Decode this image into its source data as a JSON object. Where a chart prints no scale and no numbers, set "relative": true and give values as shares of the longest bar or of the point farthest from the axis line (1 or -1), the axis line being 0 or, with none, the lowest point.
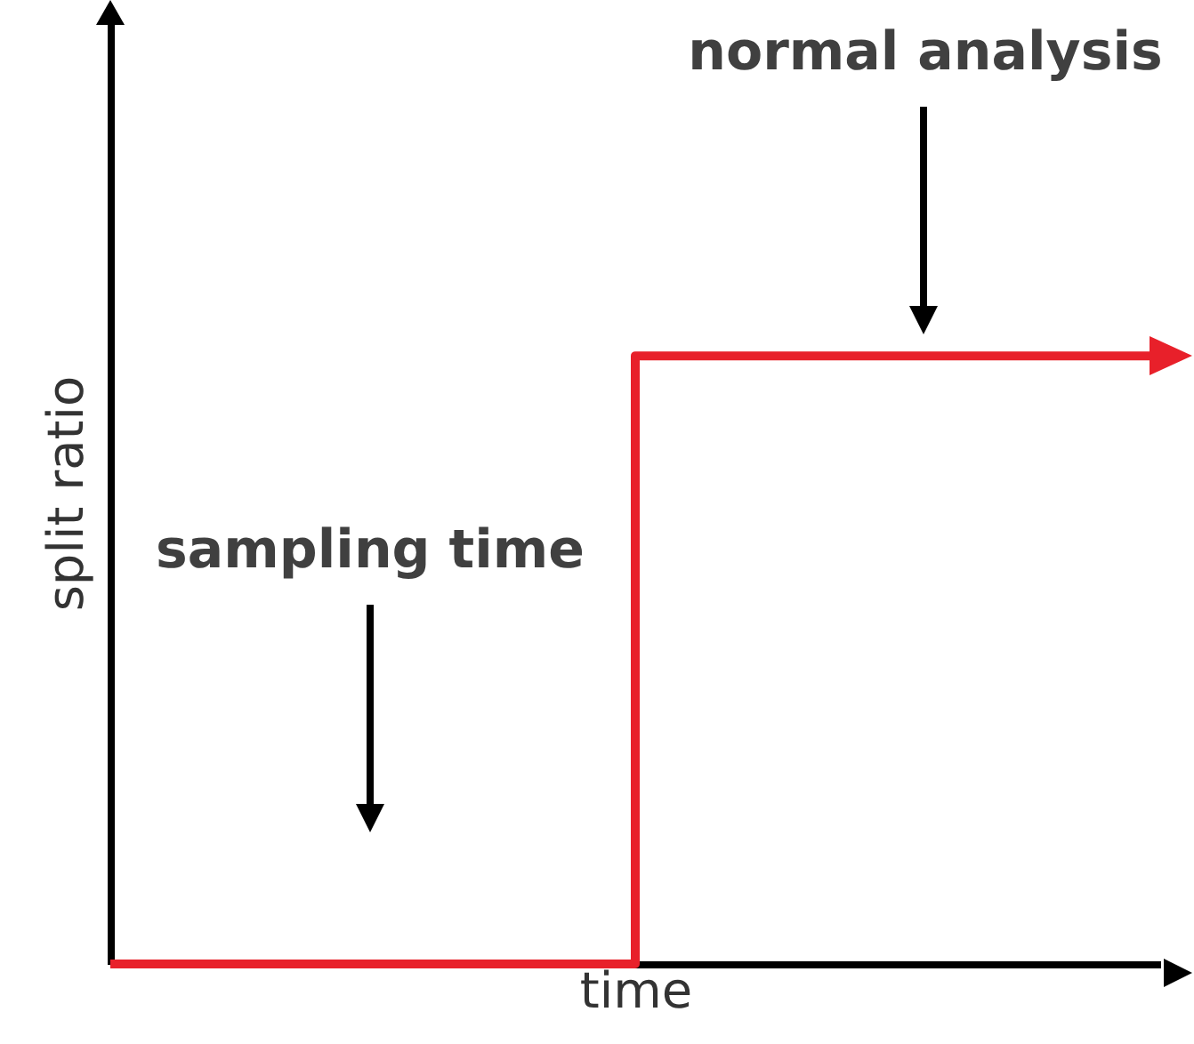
{
  "chart_data": {
    "type": "step",
    "xlabel": "time",
    "ylabel": "split ratio",
    "relative": true,
    "categories": [
      null,
      null,
      null
    ],
    "series": [
      {
        "color": "#e8202a",
        "values": [
          0,
          1,
          1
        ]
      }
    ],
    "annotations": [
      "sampling time",
      "normal analysis"
    ]
  }
}
